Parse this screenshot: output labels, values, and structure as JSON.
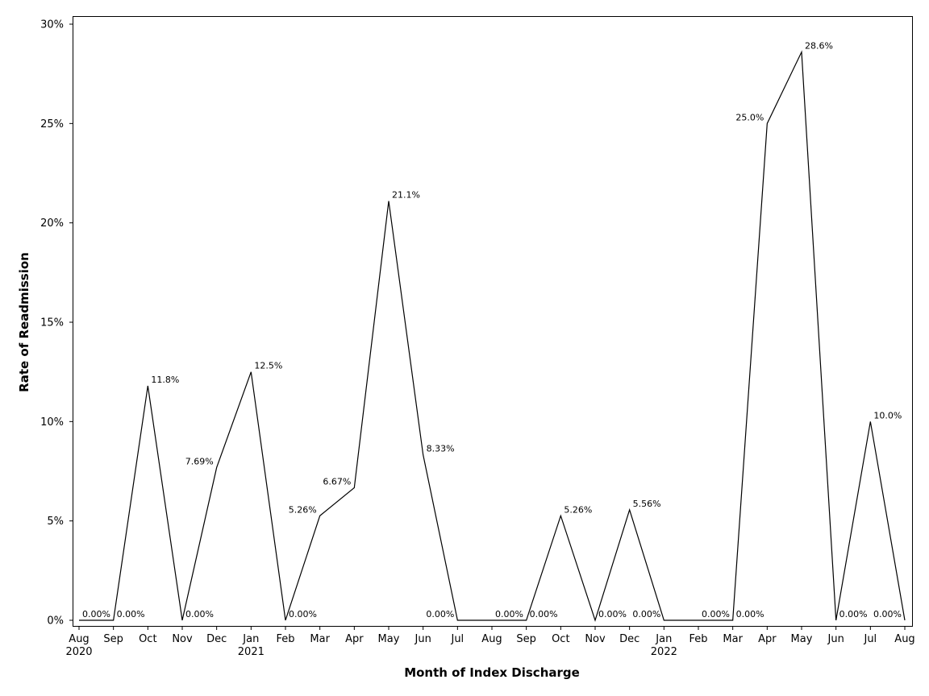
{
  "chart_data": {
    "type": "line",
    "title": "",
    "xlabel": "Month of Index Discharge",
    "ylabel": "Rate of Readmission",
    "ylim": [
      0,
      30
    ],
    "yticks": [
      "0%",
      "5%",
      "10%",
      "15%",
      "20%",
      "25%",
      "30%"
    ],
    "grid": false,
    "legend": "none",
    "line_color": "#000000",
    "x": [
      "Aug",
      "Sep",
      "Oct",
      "Nov",
      "Dec",
      "Jan",
      "Feb",
      "Mar",
      "Apr",
      "May",
      "Jun",
      "Jul",
      "Aug",
      "Sep",
      "Oct",
      "Nov",
      "Dec",
      "Jan",
      "Feb",
      "Mar",
      "Apr",
      "May",
      "Jun",
      "Jul",
      "Aug"
    ],
    "years": [
      {
        "label": "2020",
        "index": 0
      },
      {
        "label": "2021",
        "index": 5
      },
      {
        "label": "2022",
        "index": 17
      }
    ],
    "series": [
      {
        "values": [
          0,
          0,
          11.8,
          0,
          7.69,
          12.5,
          0,
          5.26,
          6.67,
          21.1,
          8.33,
          0,
          0,
          0,
          5.26,
          0,
          5.56,
          0,
          0,
          0,
          25.0,
          28.6,
          0,
          10.0,
          0
        ],
        "labels": [
          "0.00%",
          "0.00%",
          "11.8%",
          "0.00%",
          "7.69%",
          "12.5%",
          "0.00%",
          "5.26%",
          "6.67%",
          "21.1%",
          "8.33%",
          "0.00%",
          "0.00%",
          "0.00%",
          "5.26%",
          "0.00%",
          "5.56%",
          "0.00%",
          "0.00%",
          "0.00%",
          "25.0%",
          "28.6%",
          "0.00%",
          "10.0%",
          "0.00%"
        ]
      }
    ]
  }
}
